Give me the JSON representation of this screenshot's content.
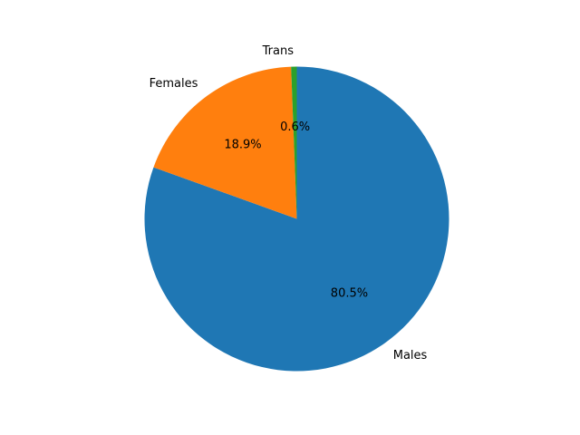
{
  "chart_data": {
    "type": "pie",
    "categories": [
      "Males",
      "Females",
      "Trans"
    ],
    "values": [
      80.5,
      18.9,
      0.6
    ],
    "labels": [
      "80.5%",
      "18.9%",
      "0.6%"
    ],
    "colors": [
      "#1f77b4",
      "#ff7f0e",
      "#2ca02c"
    ],
    "title": "",
    "legend": "none"
  }
}
